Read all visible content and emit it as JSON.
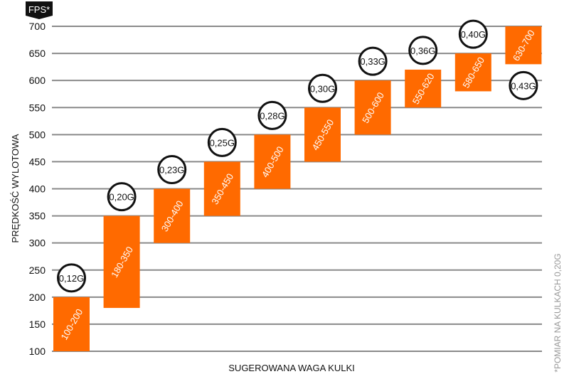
{
  "chart_data": {
    "type": "bar",
    "subtype": "floating-range",
    "unit_badge": "FPS*",
    "xlabel": "SUGEROWANA WAGA KULKI",
    "ylabel": "PRĘDKOŚĆ WYLOTOWA",
    "footnote": "*POMIAR NA KULKACH 0,20G",
    "ylim": [
      100,
      700
    ],
    "yticks": [
      100,
      150,
      200,
      250,
      300,
      350,
      400,
      450,
      500,
      550,
      600,
      650,
      700
    ],
    "grid": true,
    "bar_color": "#ff6a00",
    "categories": [
      "0,12G",
      "0,20G",
      "0,23G",
      "0,25G",
      "0,28G",
      "0,30G",
      "0,33G",
      "0,36G",
      "0,40G",
      "0,43G"
    ],
    "ranges": [
      [
        100,
        200
      ],
      [
        180,
        350
      ],
      [
        300,
        400
      ],
      [
        350,
        450
      ],
      [
        400,
        500
      ],
      [
        450,
        550
      ],
      [
        500,
        600
      ],
      [
        550,
        620
      ],
      [
        580,
        650
      ],
      [
        630,
        700
      ]
    ],
    "range_labels": [
      "100-200",
      "180-350",
      "300-400",
      "350-450",
      "400-500",
      "450-550",
      "500-600",
      "550-620",
      "580-650",
      "630-700"
    ]
  }
}
